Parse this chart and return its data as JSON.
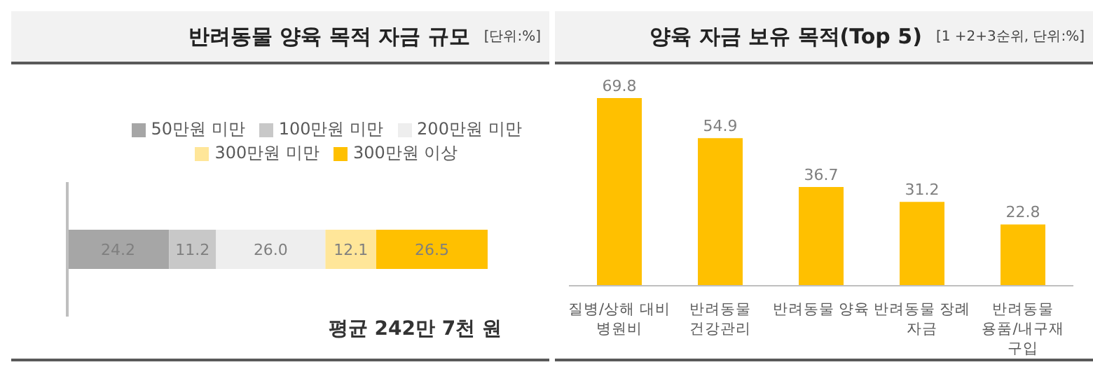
{
  "chart_data": [
    {
      "type": "bar",
      "title": "반려동물 양육 목적 자금 규모",
      "subtitle": "[단위:%]",
      "orientation": "horizontal",
      "stacked": true,
      "categories": [
        null
      ],
      "series": [
        {
          "name": "50만원 미만",
          "color": "#a6a6a6",
          "values": [
            24.2
          ],
          "value_labels": [
            "24.2"
          ]
        },
        {
          "name": "100만원 미만",
          "color": "#c8c8c8",
          "values": [
            11.2
          ],
          "value_labels": [
            "11.2"
          ]
        },
        {
          "name": "200만원 미만",
          "color": "#eeeeee",
          "values": [
            26.0
          ],
          "value_labels": [
            "26.0"
          ]
        },
        {
          "name": "300만원 미만",
          "color": "#ffe699",
          "values": [
            12.1
          ],
          "value_labels": [
            "12.1"
          ]
        },
        {
          "name": "300만원 이상",
          "color": "#ffc000",
          "values": [
            26.5
          ],
          "value_labels": [
            "26.5"
          ]
        }
      ],
      "legend": "top",
      "tick_labels": false,
      "annotations": [
        "평균 242만 7천 원"
      ]
    },
    {
      "type": "bar",
      "title": "양육 자금 보유 목적(Top 5)",
      "subtitle": "[1 +2+3순위, 단위:%]",
      "categories": [
        "질병/상해 대비 병원비",
        "반려동물 건강관리",
        "반려동물 양육",
        "반려동물 장례 자금",
        "반려동물 용품/내구재 구입"
      ],
      "values": [
        69.8,
        54.9,
        36.7,
        31.2,
        22.8
      ],
      "color": "#ffc000",
      "data_labels": true,
      "tick_labels": "x"
    }
  ]
}
